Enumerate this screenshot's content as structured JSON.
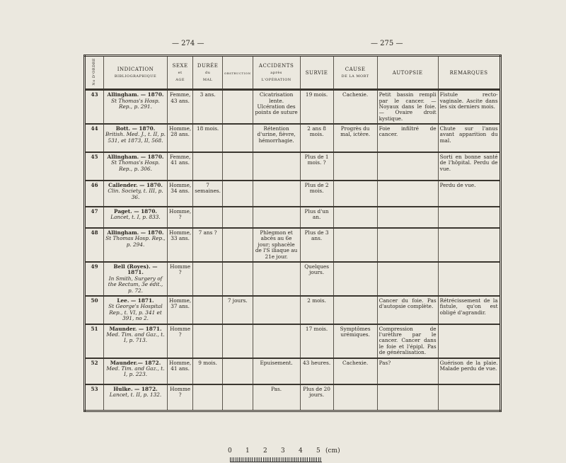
{
  "pages": {
    "left": "— 274 —",
    "right": "— 275 —"
  },
  "headers": {
    "num": "No D'ORDRE",
    "indication": [
      "INDICATION",
      "BIBLIOGRAPHIQUE"
    ],
    "sexe": [
      "SEXE",
      "et",
      "AGE"
    ],
    "duree": [
      "DURÉE",
      "du",
      "MAL"
    ],
    "obstruction": "OBSTRUCTION",
    "accidents": [
      "ACCIDENTS",
      "après",
      "L'OPÉRATION"
    ],
    "survie": "SURVIE",
    "cause": [
      "CAUSE",
      "DE LA MORT"
    ],
    "autopsie": "AUTOPSIE",
    "remarques": "REMARQUES"
  },
  "rows": [
    {
      "num": "43",
      "author": "Allingham. — 1870.",
      "ref": "St Thomas's Hosp. Rep., p. 291.",
      "sexe": "Femme, 43 ans.",
      "duree": "3 ans.",
      "obstruction": "",
      "accidents": "Cicatrisation lente. Ulcération des points de suture",
      "survie": "19 mois.",
      "cause": "Cachexie.",
      "autopsie": "Petit bassin rempli par le cancer. — Noyaux dans le foie. — Ovaire droit kystique.",
      "remarques": "Fistule recto-vaginale. Ascite dans les six derniers mois."
    },
    {
      "num": "44",
      "author": "Bott. — 1870.",
      "ref": "British. Med. J., t. II, p. 531, et 1873, II, 568.",
      "sexe": "Homme, 28 ans.",
      "duree": "18 mois.",
      "obstruction": "",
      "accidents": "Rétention d'urine, fièvre, hémorrhagie.",
      "survie": "2 ans 8 mois.",
      "cause": "Progrès du mal, ictère.",
      "autopsie": "Foie infiltré de cancer.",
      "remarques": "Chute sur l'anus avant apparition du mal."
    },
    {
      "num": "45",
      "author": "Allingham. — 1870.",
      "ref": "St Thomas's Hosp. Rep., p. 306.",
      "sexe": "Femme, 41 ans.",
      "duree": "",
      "obstruction": "",
      "accidents": "",
      "survie": "Plus de 1 mois. ?",
      "cause": "",
      "autopsie": "",
      "remarques": "Sorti en bonne santé de l'hôpital. Perdu de vue."
    },
    {
      "num": "46",
      "author": "Callender. — 1870.",
      "ref": "Clin. Society, t. III, p. 36.",
      "sexe": "Homme, 34 ans.",
      "duree": "7 semaines.",
      "obstruction": "",
      "accidents": "",
      "survie": "Plus de 2 mois.",
      "cause": "",
      "autopsie": "",
      "remarques": "Perdu de vue."
    },
    {
      "num": "47",
      "author": "Paget. — 1870.",
      "ref": "Lancet, t. I, p. 833.",
      "sexe": "Homme, ?",
      "duree": "",
      "obstruction": "",
      "accidents": "",
      "survie": "Plus d'un an.",
      "cause": "",
      "autopsie": "",
      "remarques": ""
    },
    {
      "num": "48",
      "author": "Allingham. — 1870.",
      "ref": "St Thomas Hosp. Rep., p. 294.",
      "sexe": "Homme, 33 ans.",
      "duree": "7 ans ?",
      "obstruction": "",
      "accidents": "Phlegmon et abcès au 6e jour; sphacèle de l'S iliaque au 21e jour.",
      "survie": "Plus de 3 ans.",
      "cause": "",
      "autopsie": "",
      "remarques": ""
    },
    {
      "num": "49",
      "author": "Bell (Royes). — 1871.",
      "ref": "In Smith, Surgery of the Rectum, 3e édit., p. 72.",
      "sexe": "Homme ?",
      "duree": "",
      "obstruction": "",
      "accidents": "",
      "survie": "Quelques jours.",
      "cause": "",
      "autopsie": "",
      "remarques": ""
    },
    {
      "num": "50",
      "author": "Lee. — 1871.",
      "ref": "St George's Hospital Rep., t. VI, p. 341 et 391, no 2.",
      "sexe": "Homme, 37 ans.",
      "duree": "",
      "obstruction": "7 jours.",
      "accidents": "",
      "survie": "2 mois.",
      "cause": "",
      "autopsie": "Cancer du foie. Pas d'autopsie complète.",
      "remarques": "Rétrécissement de la fistule, qu'on est obligé d'agrandir."
    },
    {
      "num": "51",
      "author": "Maunder. — 1871.",
      "ref": "Med. Tim. and Gaz., t. I, p. 713.",
      "sexe": "Homme ?",
      "duree": "",
      "obstruction": "",
      "accidents": "",
      "survie": "17 mois.",
      "cause": "Symptômes urémiques.",
      "autopsie": "Compression de l'urèthre par le cancer. Cancer dans le foie et l'épipl. Pas de généralisation.",
      "remarques": ""
    },
    {
      "num": "52",
      "author": "Maunder.— 1872.",
      "ref": "Med. Tim. and Gaz., t. I, p. 223.",
      "sexe": "Homme, 41 ans.",
      "duree": "9 mois.",
      "obstruction": "",
      "accidents": "Epuisement.",
      "survie": "43 heures.",
      "cause": "Cachexie.",
      "autopsie": "Pas?",
      "remarques": "Guérison de la plaie. Malade perdu de vue."
    },
    {
      "num": "53",
      "author": "Hulke. — 1872.",
      "ref": "Lancet, t. II, p. 132.",
      "sexe": "Homme ?",
      "duree": "",
      "obstruction": "",
      "accidents": "Pas.",
      "survie": "Plus de 20 jours.",
      "cause": "",
      "autopsie": "",
      "remarques": ""
    }
  ],
  "scale": {
    "labels": [
      "0",
      "1",
      "2",
      "3",
      "4",
      "5",
      "(cm)"
    ]
  }
}
